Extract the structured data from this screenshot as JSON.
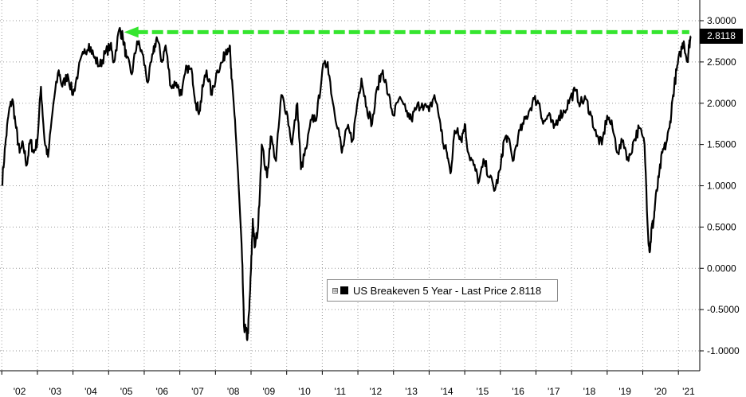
{
  "chart_data": {
    "type": "line",
    "title": "",
    "xlabel": "",
    "ylabel": "",
    "ylim": [
      -1.0,
      3.0
    ],
    "x_range": [
      2002.0,
      2021.35
    ],
    "grid": true,
    "legend_position": "bottom-center",
    "y_ticks": [
      {
        "value": 3.0,
        "label": "3.0000"
      },
      {
        "value": 2.5,
        "label": "2.5000"
      },
      {
        "value": 2.0,
        "label": "2.0000"
      },
      {
        "value": 1.5,
        "label": "1.5000"
      },
      {
        "value": 1.0,
        "label": "1.0000"
      },
      {
        "value": 0.5,
        "label": "0.5000"
      },
      {
        "value": 0.0,
        "label": "0.0000"
      },
      {
        "value": -0.5,
        "label": "-0.5000"
      },
      {
        "value": -1.0,
        "label": "-1.0000"
      }
    ],
    "x_ticks": [
      {
        "value": 2002.5,
        "label": "'02"
      },
      {
        "value": 2003.5,
        "label": "'03"
      },
      {
        "value": 2004.5,
        "label": "'04"
      },
      {
        "value": 2005.5,
        "label": "'05"
      },
      {
        "value": 2006.5,
        "label": "'06"
      },
      {
        "value": 2007.5,
        "label": "'07"
      },
      {
        "value": 2008.5,
        "label": "'08"
      },
      {
        "value": 2009.5,
        "label": "'09"
      },
      {
        "value": 2010.5,
        "label": "'10"
      },
      {
        "value": 2011.5,
        "label": "'11"
      },
      {
        "value": 2012.5,
        "label": "'12"
      },
      {
        "value": 2013.5,
        "label": "'13"
      },
      {
        "value": 2014.5,
        "label": "'14"
      },
      {
        "value": 2015.5,
        "label": "'15"
      },
      {
        "value": 2016.5,
        "label": "'16"
      },
      {
        "value": 2017.5,
        "label": "'17"
      },
      {
        "value": 2018.5,
        "label": "'18"
      },
      {
        "value": 2019.5,
        "label": "'19"
      },
      {
        "value": 2020.5,
        "label": "'20"
      },
      {
        "value": 2021.5,
        "label": "'21"
      }
    ],
    "series": [
      {
        "name": "US Breakeven 5 Year",
        "color": "#000000",
        "x": [
          2002.0,
          2002.1,
          2002.2,
          2002.3,
          2002.4,
          2002.5,
          2002.6,
          2002.7,
          2002.8,
          2002.9,
          2003.0,
          2003.1,
          2003.2,
          2003.3,
          2003.45,
          2003.6,
          2003.7,
          2003.85,
          2004.0,
          2004.15,
          2004.3,
          2004.45,
          2004.6,
          2004.75,
          2004.9,
          2005.05,
          2005.15,
          2005.3,
          2005.4,
          2005.5,
          2005.65,
          2005.8,
          2005.95,
          2006.1,
          2006.25,
          2006.35,
          2006.5,
          2006.6,
          2006.75,
          2006.9,
          2007.05,
          2007.2,
          2007.35,
          2007.45,
          2007.55,
          2007.65,
          2007.75,
          2007.9,
          2008.05,
          2008.2,
          2008.3,
          2008.4,
          2008.45,
          2008.55,
          2008.65,
          2008.75,
          2008.8,
          2008.85,
          2008.9,
          2008.95,
          2009.0,
          2009.05,
          2009.1,
          2009.2,
          2009.3,
          2009.45,
          2009.55,
          2009.7,
          2009.85,
          2010.0,
          2010.15,
          2010.3,
          2010.4,
          2010.55,
          2010.7,
          2010.85,
          2011.0,
          2011.15,
          2011.3,
          2011.45,
          2011.55,
          2011.7,
          2011.85,
          2012.0,
          2012.1,
          2012.25,
          2012.4,
          2012.55,
          2012.7,
          2012.85,
          2013.0,
          2013.15,
          2013.35,
          2013.5,
          2013.65,
          2013.8,
          2014.0,
          2014.15,
          2014.3,
          2014.4,
          2014.5,
          2014.6,
          2014.7,
          2014.8,
          2014.9,
          2015.0,
          2015.1,
          2015.25,
          2015.4,
          2015.55,
          2015.7,
          2015.85,
          2016.0,
          2016.1,
          2016.2,
          2016.35,
          2016.5,
          2016.65,
          2016.8,
          2016.95,
          2017.1,
          2017.2,
          2017.35,
          2017.5,
          2017.65,
          2017.8,
          2017.95,
          2018.1,
          2018.25,
          2018.4,
          2018.55,
          2018.7,
          2018.85,
          2019.0,
          2019.15,
          2019.3,
          2019.45,
          2019.6,
          2019.75,
          2019.9,
          2020.05,
          2020.15,
          2020.2,
          2020.25,
          2020.3,
          2020.35,
          2020.45,
          2020.55,
          2020.65,
          2020.75,
          2020.85,
          2020.95,
          2021.05,
          2021.15,
          2021.25,
          2021.3,
          2021.35
        ],
        "y": [
          1.0,
          1.5,
          1.9,
          2.05,
          1.7,
          1.4,
          1.5,
          1.25,
          1.55,
          1.4,
          1.55,
          2.2,
          1.55,
          1.35,
          2.0,
          2.4,
          2.2,
          2.35,
          2.1,
          2.4,
          2.6,
          2.72,
          2.55,
          2.45,
          2.6,
          2.7,
          2.5,
          2.9,
          2.8,
          2.55,
          2.35,
          2.75,
          2.6,
          2.25,
          2.6,
          2.8,
          2.5,
          2.7,
          2.2,
          2.25,
          2.1,
          2.45,
          2.35,
          2.0,
          1.9,
          2.2,
          2.4,
          2.1,
          2.4,
          2.5,
          2.65,
          2.7,
          2.3,
          1.8,
          1.0,
          0.1,
          -0.7,
          -0.75,
          -0.85,
          -0.5,
          0.0,
          0.6,
          0.25,
          0.5,
          1.5,
          1.1,
          1.6,
          1.3,
          2.1,
          1.9,
          1.5,
          2.0,
          1.2,
          1.45,
          1.8,
          1.85,
          2.4,
          2.5,
          2.0,
          1.7,
          1.4,
          1.7,
          1.55,
          2.05,
          2.3,
          1.95,
          1.75,
          2.2,
          2.4,
          2.1,
          1.85,
          2.05,
          1.9,
          1.8,
          1.95,
          2.0,
          1.9,
          2.1,
          1.8,
          1.5,
          1.4,
          1.15,
          1.6,
          1.7,
          1.55,
          1.75,
          1.4,
          1.25,
          1.05,
          1.3,
          1.1,
          0.95,
          1.2,
          1.55,
          1.6,
          1.3,
          1.6,
          1.75,
          1.9,
          2.05,
          2.0,
          1.75,
          1.85,
          1.7,
          1.85,
          1.9,
          2.05,
          2.15,
          2.0,
          2.05,
          1.85,
          1.6,
          1.5,
          1.85,
          1.7,
          1.4,
          1.55,
          1.3,
          1.55,
          1.7,
          1.5,
          0.4,
          0.2,
          0.5,
          0.55,
          0.8,
          1.1,
          1.4,
          1.5,
          1.7,
          2.1,
          2.4,
          2.6,
          2.75,
          2.5,
          2.7,
          2.81
        ]
      }
    ],
    "annotations": {
      "peak_value": 2.89,
      "peak_x": 2005.3,
      "arrow_color": "#35e52f",
      "last_price_label": "2.8118",
      "last_price_value": 2.8118
    },
    "legend": {
      "expand_symbol": "⊞",
      "text": "US Breakeven 5 Year - Last Price 2.8118"
    }
  }
}
